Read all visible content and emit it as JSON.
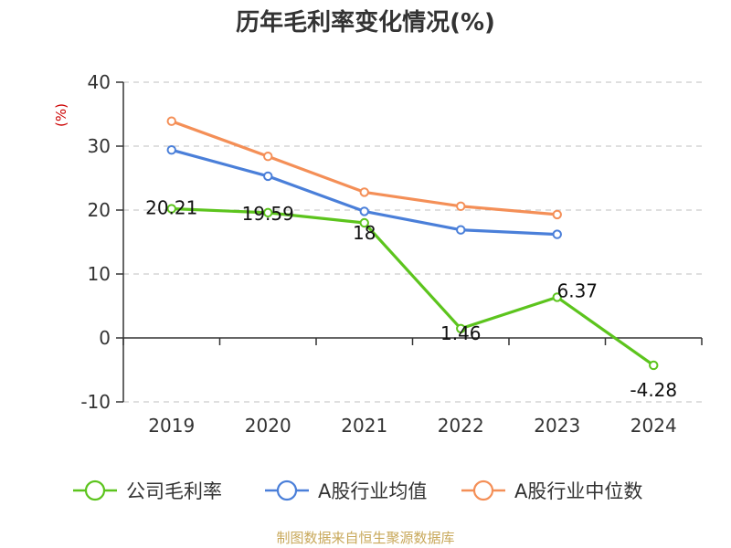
{
  "chart_data": {
    "type": "line",
    "title": "历年毛利率变化情况(%)",
    "ylabel": "(%)",
    "xlabel": "",
    "categories": [
      "2019",
      "2020",
      "2021",
      "2022",
      "2023",
      "2024"
    ],
    "ylim": [
      -10,
      40
    ],
    "yticks": [
      40,
      30,
      20,
      10,
      0,
      -10
    ],
    "grid": true,
    "legend_position": "bottom",
    "series": [
      {
        "name": "公司毛利率",
        "color": "#5cc41d",
        "values": [
          20.21,
          19.59,
          18,
          1.46,
          6.37,
          -4.28
        ],
        "labels": [
          "20.21",
          "19.59",
          "18",
          "1.46",
          "6.37",
          "-4.28"
        ]
      },
      {
        "name": "A股行业均值",
        "color": "#4a7fd9",
        "values": [
          29.4,
          25.3,
          19.8,
          16.9,
          16.2,
          null
        ]
      },
      {
        "name": "A股行业中位数",
        "color": "#f48f57",
        "values": [
          33.9,
          28.4,
          22.8,
          20.6,
          19.3,
          null
        ]
      }
    ]
  },
  "footer": {
    "source": "制图数据来自恒生聚源数据库"
  }
}
